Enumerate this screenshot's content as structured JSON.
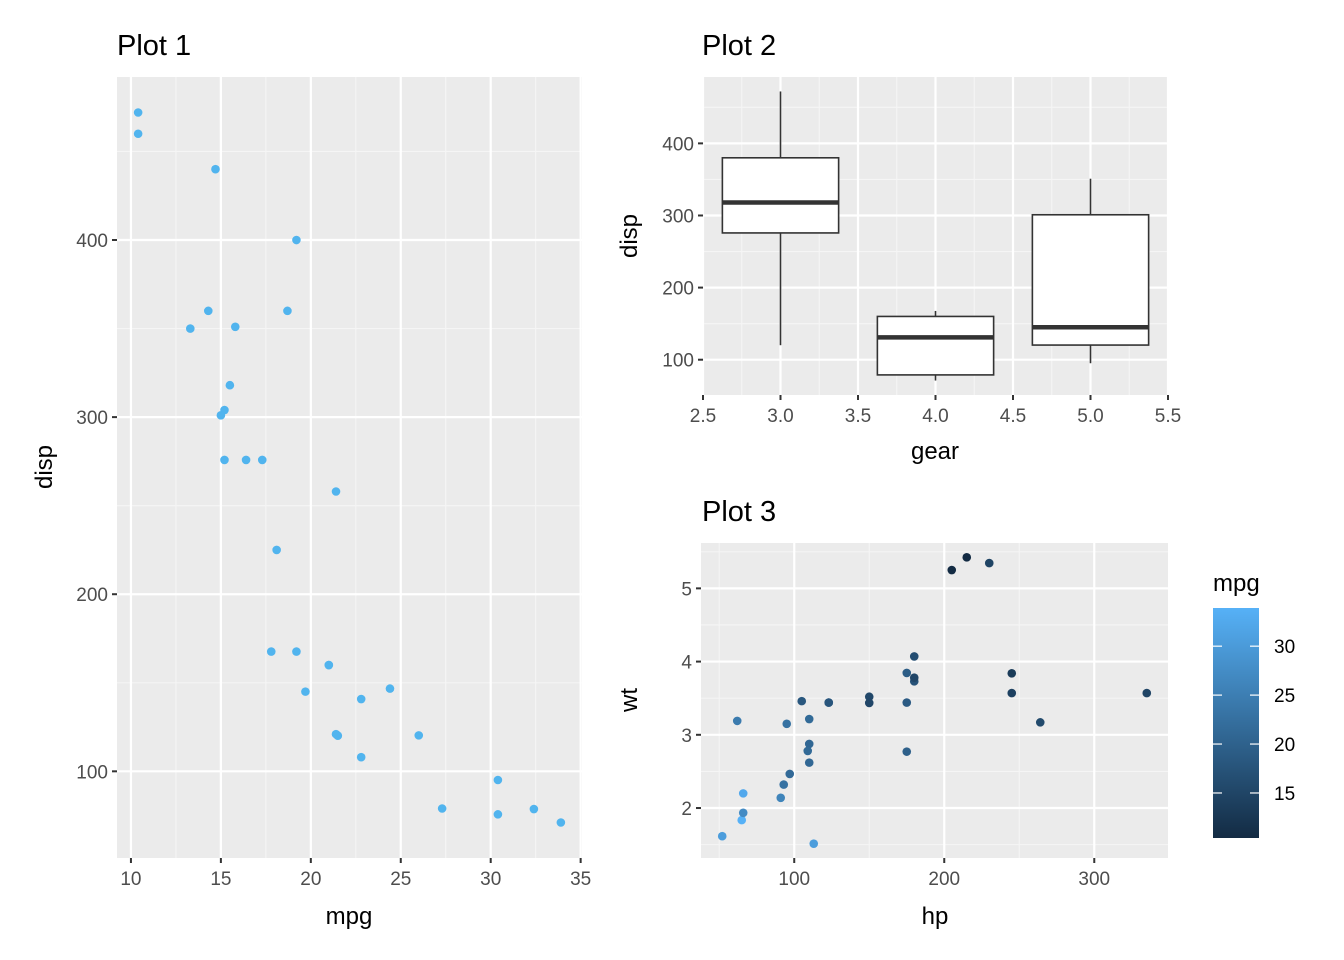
{
  "colors": {
    "panel": "#EBEBEB",
    "grid_major": "#FFFFFF",
    "grid_minor": "#F5F5F5",
    "point_plot1": "#51B4EE",
    "gradient_low": "#132B43",
    "gradient_high": "#56B1F7",
    "box_line": "#333333"
  },
  "chart_data": [
    {
      "type": "scatter",
      "title": "Plot 1",
      "xlabel": "mpg",
      "ylabel": "disp",
      "xlim": [
        9.225,
        35.075
      ],
      "ylim": [
        51.055,
        492.045
      ],
      "xticks": [
        10,
        15,
        20,
        25,
        30,
        35
      ],
      "yticks": [
        100,
        200,
        300,
        400
      ],
      "grid": true,
      "x_field": "mpg",
      "y_field": "disp"
    },
    {
      "type": "box",
      "title": "Plot 2",
      "xlabel": "gear",
      "ylabel": "disp",
      "xlim": [
        2.5,
        5.5
      ],
      "ylim": [
        51.055,
        492.045
      ],
      "xticks": [
        2.5,
        3.0,
        3.5,
        4.0,
        4.5,
        5.0,
        5.5
      ],
      "xtick_labels": [
        "2.5",
        "3.0",
        "3.5",
        "4.0",
        "4.5",
        "5.0",
        "5.5"
      ],
      "yticks": [
        100,
        200,
        300,
        400
      ],
      "grid": true,
      "box_width": 0.75,
      "boxes": [
        {
          "gear": 3,
          "min": 120.1,
          "q1": 275.8,
          "median": 318,
          "q3": 380,
          "max": 472
        },
        {
          "gear": 4,
          "min": 71.1,
          "q1": 78.925,
          "median": 130.9,
          "q3": 160,
          "max": 167.6
        },
        {
          "gear": 5,
          "min": 95.1,
          "q1": 120.3,
          "median": 145,
          "q3": 301,
          "max": 351
        }
      ]
    },
    {
      "type": "scatter",
      "title": "Plot 3",
      "xlabel": "hp",
      "ylabel": "wt",
      "xlim": [
        37.85,
        349.15
      ],
      "ylim": [
        1.3175,
        5.6195
      ],
      "xticks": [
        100,
        200,
        300
      ],
      "yticks": [
        2,
        3,
        4,
        5
      ],
      "grid": true,
      "x_field": "hp",
      "y_field": "wt",
      "color_field": "mpg",
      "legend": {
        "title": "mpg",
        "position": "right",
        "limits": [
          10.4,
          33.9
        ],
        "breaks": [
          15,
          20,
          25,
          30
        ]
      }
    }
  ],
  "cars": [
    {
      "mpg": 21.0,
      "disp": 160,
      "hp": 110,
      "wt": 2.62,
      "gear": 4
    },
    {
      "mpg": 21.0,
      "disp": 160,
      "hp": 110,
      "wt": 2.875,
      "gear": 4
    },
    {
      "mpg": 22.8,
      "disp": 108,
      "hp": 93,
      "wt": 2.32,
      "gear": 4
    },
    {
      "mpg": 21.4,
      "disp": 258,
      "hp": 110,
      "wt": 3.215,
      "gear": 3
    },
    {
      "mpg": 18.7,
      "disp": 360,
      "hp": 175,
      "wt": 3.44,
      "gear": 3
    },
    {
      "mpg": 18.1,
      "disp": 225,
      "hp": 105,
      "wt": 3.46,
      "gear": 3
    },
    {
      "mpg": 14.3,
      "disp": 360,
      "hp": 245,
      "wt": 3.57,
      "gear": 3
    },
    {
      "mpg": 24.4,
      "disp": 146.7,
      "hp": 62,
      "wt": 3.19,
      "gear": 4
    },
    {
      "mpg": 22.8,
      "disp": 140.8,
      "hp": 95,
      "wt": 3.15,
      "gear": 4
    },
    {
      "mpg": 19.2,
      "disp": 167.6,
      "hp": 123,
      "wt": 3.44,
      "gear": 4
    },
    {
      "mpg": 17.8,
      "disp": 167.6,
      "hp": 123,
      "wt": 3.44,
      "gear": 4
    },
    {
      "mpg": 16.4,
      "disp": 275.8,
      "hp": 180,
      "wt": 4.07,
      "gear": 3
    },
    {
      "mpg": 17.3,
      "disp": 275.8,
      "hp": 180,
      "wt": 3.73,
      "gear": 3
    },
    {
      "mpg": 15.2,
      "disp": 275.8,
      "hp": 180,
      "wt": 3.78,
      "gear": 3
    },
    {
      "mpg": 10.4,
      "disp": 472,
      "hp": 205,
      "wt": 5.25,
      "gear": 3
    },
    {
      "mpg": 10.4,
      "disp": 460,
      "hp": 215,
      "wt": 5.424,
      "gear": 3
    },
    {
      "mpg": 14.7,
      "disp": 440,
      "hp": 230,
      "wt": 5.345,
      "gear": 3
    },
    {
      "mpg": 32.4,
      "disp": 78.7,
      "hp": 66,
      "wt": 2.2,
      "gear": 4
    },
    {
      "mpg": 30.4,
      "disp": 75.7,
      "hp": 52,
      "wt": 1.615,
      "gear": 4
    },
    {
      "mpg": 33.9,
      "disp": 71.1,
      "hp": 65,
      "wt": 1.835,
      "gear": 4
    },
    {
      "mpg": 21.5,
      "disp": 120.1,
      "hp": 97,
      "wt": 2.465,
      "gear": 3
    },
    {
      "mpg": 15.5,
      "disp": 318,
      "hp": 150,
      "wt": 3.52,
      "gear": 3
    },
    {
      "mpg": 15.2,
      "disp": 304,
      "hp": 150,
      "wt": 3.435,
      "gear": 3
    },
    {
      "mpg": 13.3,
      "disp": 350,
      "hp": 245,
      "wt": 3.84,
      "gear": 3
    },
    {
      "mpg": 19.2,
      "disp": 400,
      "hp": 175,
      "wt": 3.845,
      "gear": 3
    },
    {
      "mpg": 27.3,
      "disp": 79,
      "hp": 66,
      "wt": 1.935,
      "gear": 4
    },
    {
      "mpg": 26.0,
      "disp": 120.3,
      "hp": 91,
      "wt": 2.14,
      "gear": 5
    },
    {
      "mpg": 30.4,
      "disp": 95.1,
      "hp": 113,
      "wt": 1.513,
      "gear": 5
    },
    {
      "mpg": 15.8,
      "disp": 351,
      "hp": 264,
      "wt": 3.17,
      "gear": 5
    },
    {
      "mpg": 19.7,
      "disp": 145,
      "hp": 175,
      "wt": 2.77,
      "gear": 5
    },
    {
      "mpg": 15.0,
      "disp": 301,
      "hp": 335,
      "wt": 3.57,
      "gear": 5
    },
    {
      "mpg": 21.4,
      "disp": 121,
      "hp": 109,
      "wt": 2.78,
      "gear": 4
    }
  ]
}
